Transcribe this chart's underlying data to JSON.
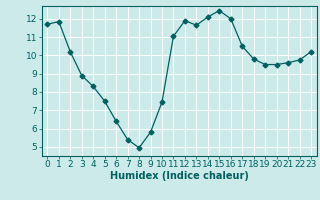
{
  "x": [
    0,
    1,
    2,
    3,
    4,
    5,
    6,
    7,
    8,
    9,
    10,
    11,
    12,
    13,
    14,
    15,
    16,
    17,
    18,
    19,
    20,
    21,
    22,
    23
  ],
  "y": [
    11.7,
    11.85,
    10.2,
    8.9,
    8.3,
    7.5,
    6.4,
    5.4,
    4.95,
    5.8,
    7.45,
    11.05,
    11.9,
    11.65,
    12.1,
    12.45,
    12.0,
    10.5,
    9.8,
    9.5,
    9.5,
    9.6,
    9.75,
    10.2
  ],
  "line_color": "#006060",
  "marker": "D",
  "marker_size": 2.5,
  "bg_color": "#cceaea",
  "grid_color": "#ffffff",
  "tick_color": "#006060",
  "xlabel": "Humidex (Indice chaleur)",
  "ylim": [
    4.5,
    12.7
  ],
  "xlim": [
    -0.5,
    23.5
  ],
  "yticks": [
    5,
    6,
    7,
    8,
    9,
    10,
    11,
    12
  ],
  "xticks": [
    0,
    1,
    2,
    3,
    4,
    5,
    6,
    7,
    8,
    9,
    10,
    11,
    12,
    13,
    14,
    15,
    16,
    17,
    18,
    19,
    20,
    21,
    22,
    23
  ],
  "xlabel_fontsize": 7,
  "tick_fontsize": 6.5
}
